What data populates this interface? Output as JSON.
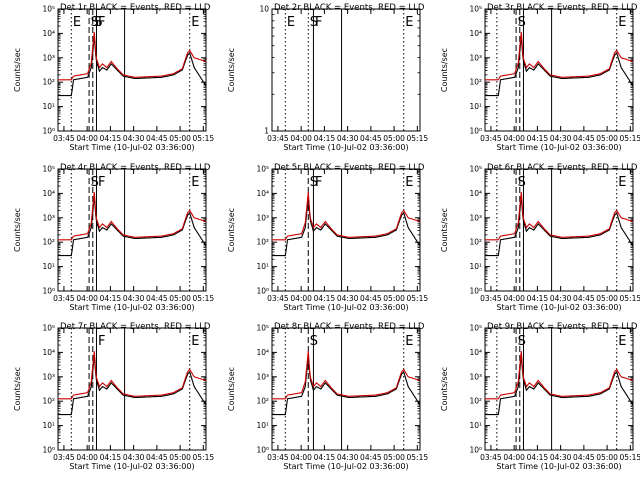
{
  "chart_data": [
    {
      "type": "line",
      "title": "Det 1r BLACK = Events, RED = LLD",
      "xlabel": "Start Time (10-Jul-02 03:36:00)",
      "ylabel": "Counts/sec",
      "yscale": "log",
      "ylim": [
        1,
        100000
      ],
      "ytick_labels": [
        "10⁰",
        "10¹",
        "10²",
        "10³",
        "10⁴",
        "10⁵"
      ],
      "xlim": [
        0,
        100
      ],
      "xtick_labels": [
        "03:45",
        "04:00",
        "04:15",
        "04:30",
        "04:45",
        "05:00",
        "05:15"
      ],
      "markers": [
        {
          "label": "E",
          "x": 9,
          "style": "dotted"
        },
        {
          "label": "S",
          "x": 21,
          "style": "dashed"
        },
        {
          "label": "S",
          "x": 23.5,
          "style": "dashed"
        },
        {
          "label": "F",
          "x": 26,
          "style": "solid"
        },
        {
          "label": "",
          "x": 45,
          "style": "solid"
        },
        {
          "label": "E",
          "x": 89,
          "style": "dotted"
        }
      ],
      "series": [
        {
          "name": "Events",
          "color": "#000000",
          "shape": "black"
        },
        {
          "name": "LLD",
          "color": "#cc0000",
          "shape": "red"
        }
      ]
    },
    {
      "type": "line",
      "title": "Det 2r BLACK = Events, RED = LLD",
      "xlabel": "Start Time (10-Jul-02 03:36:00)",
      "ylabel": "Counts/sec",
      "yscale": "log",
      "ylim": [
        1,
        10
      ],
      "ytick_labels": [
        "1",
        "10"
      ],
      "xlim": [
        0,
        100
      ],
      "xtick_labels": [
        "03:45",
        "04:00",
        "04:15",
        "04:30",
        "04:45",
        "05:00",
        "05:15"
      ],
      "markers": [
        {
          "label": "E",
          "x": 9,
          "style": "dotted"
        },
        {
          "label": "S",
          "x": 24.5,
          "style": "dotted"
        },
        {
          "label": "F",
          "x": 28,
          "style": "solid"
        },
        {
          "label": "",
          "x": 47,
          "style": "solid"
        },
        {
          "label": "E",
          "x": 89,
          "style": "dotted"
        }
      ],
      "series": []
    },
    {
      "type": "line",
      "title": "Det 3r BLACK = Events, RED = LLD",
      "xlabel": "Start Time (10-Jul-02 03:36:00)",
      "ylabel": "Counts/sec",
      "yscale": "log",
      "ylim": [
        1,
        100000
      ],
      "ytick_labels": [
        "10⁰",
        "10¹",
        "10²",
        "10³",
        "10⁴",
        "10⁵"
      ],
      "xlim": [
        0,
        100
      ],
      "xtick_labels": [
        "03:45",
        "04:00",
        "04:15",
        "04:30",
        "04:45",
        "05:00",
        "05:15"
      ],
      "markers": [
        {
          "label": "",
          "x": 8,
          "style": "dotted"
        },
        {
          "label": "S",
          "x": 21,
          "style": "dashed"
        },
        {
          "label": "",
          "x": 23.5,
          "style": "dashed"
        },
        {
          "label": "",
          "x": 26,
          "style": "solid"
        },
        {
          "label": "",
          "x": 45,
          "style": "solid"
        },
        {
          "label": "E",
          "x": 89,
          "style": "dotted"
        }
      ],
      "series": [
        {
          "name": "Events",
          "color": "#000000",
          "shape": "black"
        },
        {
          "name": "LLD",
          "color": "#cc0000",
          "shape": "red"
        }
      ]
    },
    {
      "type": "line",
      "title": "Det 4r BLACK = Events, RED = LLD",
      "xlabel": "Start Time (10-Jul-02 03:36:00)",
      "ylabel": "Counts/sec",
      "yscale": "log",
      "ylim": [
        1,
        100000
      ],
      "ytick_labels": [
        "10⁰",
        "10¹",
        "10²",
        "10³",
        "10⁴",
        "10⁵"
      ],
      "xlim": [
        0,
        100
      ],
      "xtick_labels": [
        "03:45",
        "04:00",
        "04:15",
        "04:30",
        "04:45",
        "05:00",
        "05:15"
      ],
      "markers": [
        {
          "label": "",
          "x": 9,
          "style": "dotted"
        },
        {
          "label": "S",
          "x": 21,
          "style": "dashed"
        },
        {
          "label": "",
          "x": 23.5,
          "style": "dashed"
        },
        {
          "label": "F",
          "x": 26,
          "style": "solid"
        },
        {
          "label": "",
          "x": 45,
          "style": "solid"
        },
        {
          "label": "E",
          "x": 89,
          "style": "dotted"
        }
      ],
      "series": [
        {
          "name": "Events",
          "color": "#000000",
          "shape": "black"
        },
        {
          "name": "LLD",
          "color": "#cc0000",
          "shape": "red"
        }
      ]
    },
    {
      "type": "line",
      "title": "Det 5r BLACK = Events, RED = LLD",
      "xlabel": "Start Time (10-Jul-02 03:36:00)",
      "ylabel": "Counts/sec",
      "yscale": "log",
      "ylim": [
        1,
        100000
      ],
      "ytick_labels": [
        "10⁰",
        "10¹",
        "10²",
        "10³",
        "10⁴",
        "10⁵"
      ],
      "xlim": [
        0,
        100
      ],
      "xtick_labels": [
        "03:45",
        "04:00",
        "04:15",
        "04:30",
        "04:45",
        "05:00",
        "05:15"
      ],
      "markers": [
        {
          "label": "",
          "x": 9,
          "style": "dotted"
        },
        {
          "label": "S",
          "x": 24.5,
          "style": "dashed"
        },
        {
          "label": "F",
          "x": 28,
          "style": "solid"
        },
        {
          "label": "",
          "x": 47,
          "style": "solid"
        },
        {
          "label": "E",
          "x": 89,
          "style": "dotted"
        }
      ],
      "series": [
        {
          "name": "Events",
          "color": "#000000",
          "shape": "black"
        },
        {
          "name": "LLD",
          "color": "#cc0000",
          "shape": "red"
        }
      ]
    },
    {
      "type": "line",
      "title": "Det 6r BLACK = Events, RED = LLD",
      "xlabel": "Start Time (10-Jul-02 03:36:00)",
      "ylabel": "Counts/sec",
      "yscale": "log",
      "ylim": [
        1,
        100000
      ],
      "ytick_labels": [
        "10⁰",
        "10¹",
        "10²",
        "10³",
        "10⁴",
        "10⁵"
      ],
      "xlim": [
        0,
        100
      ],
      "xtick_labels": [
        "03:45",
        "04:00",
        "04:15",
        "04:30",
        "04:45",
        "05:00",
        "05:15"
      ],
      "markers": [
        {
          "label": "",
          "x": 8,
          "style": "dotted"
        },
        {
          "label": "S",
          "x": 21,
          "style": "dashed"
        },
        {
          "label": "",
          "x": 23.5,
          "style": "dashed"
        },
        {
          "label": "",
          "x": 26,
          "style": "solid"
        },
        {
          "label": "",
          "x": 45,
          "style": "solid"
        },
        {
          "label": "E",
          "x": 89,
          "style": "dotted"
        }
      ],
      "series": [
        {
          "name": "Events",
          "color": "#000000",
          "shape": "black"
        },
        {
          "name": "LLD",
          "color": "#cc0000",
          "shape": "red"
        }
      ]
    },
    {
      "type": "line",
      "title": "Det 7r BLACK = Events, RED = LLD",
      "xlabel": "Start Time (10-Jul-02 03:36:00)",
      "ylabel": "Counts/sec",
      "yscale": "log",
      "ylim": [
        1,
        100000
      ],
      "ytick_labels": [
        "10⁰",
        "10¹",
        "10²",
        "10³",
        "10⁴",
        "10⁵"
      ],
      "xlim": [
        0,
        100
      ],
      "xtick_labels": [
        "03:45",
        "04:00",
        "04:15",
        "04:30",
        "04:45",
        "05:00",
        "05:15"
      ],
      "markers": [
        {
          "label": "",
          "x": 9,
          "style": "dotted"
        },
        {
          "label": "",
          "x": 21,
          "style": "dashed"
        },
        {
          "label": "",
          "x": 23.5,
          "style": "dashed"
        },
        {
          "label": "F",
          "x": 26,
          "style": "solid"
        },
        {
          "label": "",
          "x": 45,
          "style": "solid"
        },
        {
          "label": "E",
          "x": 89,
          "style": "dotted"
        }
      ],
      "series": [
        {
          "name": "Events",
          "color": "#000000",
          "shape": "black"
        },
        {
          "name": "LLD",
          "color": "#cc0000",
          "shape": "red"
        }
      ]
    },
    {
      "type": "line",
      "title": "Det 8r BLACK = Events, RED = LLD",
      "xlabel": "Start Time (10-Jul-02 03:36:00)",
      "ylabel": "Counts/sec",
      "yscale": "log",
      "ylim": [
        1,
        100000
      ],
      "ytick_labels": [
        "10⁰",
        "10¹",
        "10²",
        "10³",
        "10⁴",
        "10⁵"
      ],
      "xlim": [
        0,
        100
      ],
      "xtick_labels": [
        "03:45",
        "04:00",
        "04:15",
        "04:30",
        "04:45",
        "05:00",
        "05:15"
      ],
      "markers": [
        {
          "label": "",
          "x": 9,
          "style": "dotted"
        },
        {
          "label": "S",
          "x": 24.5,
          "style": "dashed"
        },
        {
          "label": "",
          "x": 28,
          "style": "solid"
        },
        {
          "label": "",
          "x": 47,
          "style": "solid"
        },
        {
          "label": "E",
          "x": 89,
          "style": "dotted"
        }
      ],
      "series": [
        {
          "name": "Events",
          "color": "#000000",
          "shape": "black"
        },
        {
          "name": "LLD",
          "color": "#cc0000",
          "shape": "red"
        }
      ]
    },
    {
      "type": "line",
      "title": "Det 9r BLACK = Events, RED = LLD",
      "xlabel": "Start Time (10-Jul-02 03:36:00)",
      "ylabel": "Counts/sec",
      "yscale": "log",
      "ylim": [
        1,
        100000
      ],
      "ytick_labels": [
        "10⁰",
        "10¹",
        "10²",
        "10³",
        "10⁴",
        "10⁵"
      ],
      "xlim": [
        0,
        100
      ],
      "xtick_labels": [
        "03:45",
        "04:00",
        "04:15",
        "04:30",
        "04:45",
        "05:00",
        "05:15"
      ],
      "markers": [
        {
          "label": "",
          "x": 8,
          "style": "dotted"
        },
        {
          "label": "S",
          "x": 21,
          "style": "dashed"
        },
        {
          "label": "",
          "x": 23.5,
          "style": "dashed"
        },
        {
          "label": "",
          "x": 26,
          "style": "solid"
        },
        {
          "label": "",
          "x": 45,
          "style": "solid"
        },
        {
          "label": "E",
          "x": 89,
          "style": "dotted"
        }
      ],
      "series": [
        {
          "name": "Events",
          "color": "#000000",
          "shape": "black"
        },
        {
          "name": "LLD",
          "color": "#cc0000",
          "shape": "red"
        }
      ]
    }
  ]
}
